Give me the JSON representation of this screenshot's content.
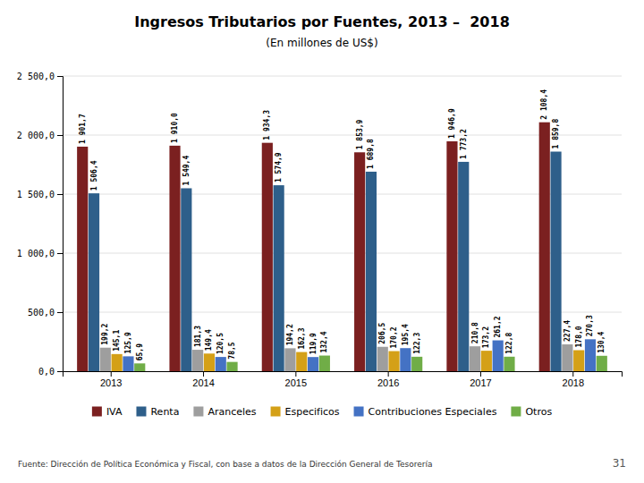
{
  "chart_data": {
    "type": "bar",
    "title": "Ingresos Tributarios por Fuentes, 2013 –  2018",
    "subtitle": "(En millones de US$)",
    "categories": [
      "2013",
      "2014",
      "2015",
      "2016",
      "2017",
      "2018"
    ],
    "series": [
      {
        "name": "IVA",
        "color": "#7B2020",
        "values": [
          1901.7,
          1910.0,
          1934.3,
          1853.9,
          1946.9,
          2108.4
        ],
        "value_labels": [
          "1 901,7",
          "1 910,0",
          "1 934,3",
          "1 853,9",
          "1 946,9",
          "2 108,4"
        ]
      },
      {
        "name": "Renta",
        "color": "#2E5F8A",
        "values": [
          1506.4,
          1549.4,
          1574.9,
          1689.8,
          1773.2,
          1859.8
        ],
        "value_labels": [
          "1 506,4",
          "1 549,4",
          "1 574,9",
          "1 689,8",
          "1 773,2",
          "1 859,8"
        ]
      },
      {
        "name": "Aranceles",
        "color": "#9E9E9E",
        "values": [
          199.2,
          181.3,
          194.2,
          206.5,
          210.8,
          227.4
        ],
        "value_labels": [
          "199,2",
          "181,3",
          "194,2",
          "206,5",
          "210,8",
          "227,4"
        ]
      },
      {
        "name": "Especificos",
        "color": "#D4A017",
        "values": [
          145.1,
          149.4,
          162.3,
          170.2,
          173.2,
          178.0
        ],
        "value_labels": [
          "145,1",
          "149,4",
          "162,3",
          "170,2",
          "173,2",
          "178,0"
        ]
      },
      {
        "name": "Contribuciones Especiales",
        "color": "#4472C4",
        "values": [
          125.9,
          120.5,
          119.9,
          195.4,
          261.2,
          270.3
        ],
        "value_labels": [
          "125,9",
          "120,5",
          "119,9",
          "195,4",
          "261,2",
          "270,3"
        ]
      },
      {
        "name": "Otros",
        "color": "#70AD47",
        "values": [
          65.9,
          78.5,
          132.4,
          122.3,
          122.8,
          130.4
        ],
        "value_labels": [
          "65,9",
          "78,5",
          "132,4",
          "122,3",
          "122,8",
          "130,4"
        ]
      }
    ],
    "ylim": [
      0,
      2500
    ],
    "yticks": [
      {
        "value": 0,
        "label": "0,0"
      },
      {
        "value": 500,
        "label": "500,0"
      },
      {
        "value": 1000,
        "label": "1 000,0"
      },
      {
        "value": 1500,
        "label": "1 500,0"
      },
      {
        "value": 2000,
        "label": "2 000,0"
      },
      {
        "value": 2500,
        "label": "2 500,0"
      }
    ],
    "grid": true,
    "legend": "bottom",
    "data_labels": true,
    "annotations": [
      "Fuente: Dirección de Política Económica y Fiscal, con base a datos de la Dirección General de Tesorería",
      "31"
    ]
  }
}
